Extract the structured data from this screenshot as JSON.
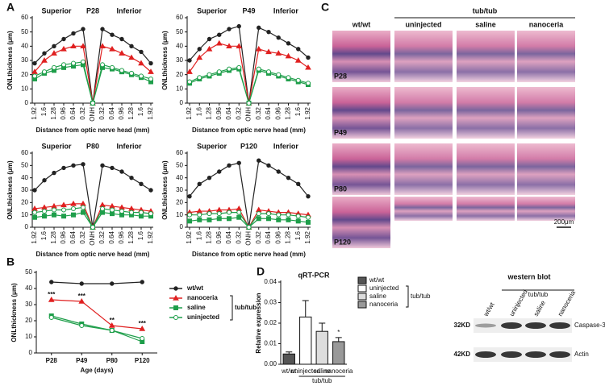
{
  "panel_labels": [
    "A",
    "B",
    "C",
    "D"
  ],
  "chart_data": [
    {
      "type": "line",
      "title": "P28",
      "left_label": "Superior",
      "right_label": "Inferior",
      "y_label": "ONLthickness (μm)",
      "x_label": "Distance from optic nerve head (mm)",
      "categories": [
        "1.92",
        "1.6",
        "1.28",
        "0.96",
        "0.64",
        "0.32",
        "ONH",
        "0.32",
        "0.64",
        "0.96",
        "1.28",
        "1.6",
        "1.92"
      ],
      "ylim": [
        0,
        60
      ],
      "yticks": [
        0,
        10,
        20,
        30,
        40,
        50,
        60
      ],
      "series": [
        {
          "name": "wt/wt",
          "color": "#222222",
          "marker": "circle",
          "values": [
            28,
            35,
            40,
            45,
            49,
            52,
            0,
            52,
            48,
            45,
            40,
            36,
            28
          ]
        },
        {
          "name": "nanoceria",
          "color": "#e02020",
          "marker": "triangle",
          "values": [
            22,
            30,
            35,
            38,
            40,
            40,
            0,
            40,
            38,
            35,
            32,
            28,
            22
          ]
        },
        {
          "name": "saline",
          "color": "#1e9e4a",
          "marker": "square",
          "values": [
            17,
            21,
            23,
            25,
            26,
            27,
            0,
            25,
            24,
            22,
            20,
            18,
            15
          ]
        },
        {
          "name": "uninjected",
          "color": "#1e9e4a",
          "marker": "open-circle",
          "values": [
            19,
            22,
            25,
            27,
            28,
            29,
            0,
            27,
            25,
            23,
            21,
            19,
            17
          ]
        }
      ]
    },
    {
      "type": "line",
      "title": "P49",
      "left_label": "Superior",
      "right_label": "Inferior",
      "y_label": "ONLthickness (μm)",
      "x_label": "Distance from optic nerve head (mm)",
      "categories": [
        "1.92",
        "1.6",
        "1.28",
        "0.96",
        "0.64",
        "0.32",
        "ONH",
        "0.32",
        "0.64",
        "0.96",
        "1.28",
        "1.6",
        "1.92"
      ],
      "ylim": [
        0,
        60
      ],
      "yticks": [
        0,
        10,
        20,
        30,
        40,
        50,
        60
      ],
      "series": [
        {
          "name": "wt/wt",
          "color": "#222222",
          "marker": "circle",
          "values": [
            30,
            38,
            45,
            48,
            52,
            54,
            0,
            53,
            50,
            46,
            42,
            38,
            32
          ]
        },
        {
          "name": "nanoceria",
          "color": "#e02020",
          "marker": "triangle",
          "values": [
            22,
            32,
            38,
            42,
            40,
            40,
            0,
            38,
            36,
            35,
            33,
            30,
            25
          ]
        },
        {
          "name": "saline",
          "color": "#1e9e4a",
          "marker": "square",
          "values": [
            14,
            17,
            19,
            21,
            23,
            24,
            0,
            23,
            21,
            19,
            17,
            15,
            13
          ]
        },
        {
          "name": "uninjected",
          "color": "#1e9e4a",
          "marker": "open-circle",
          "values": [
            15,
            18,
            20,
            22,
            24,
            25,
            0,
            24,
            22,
            20,
            18,
            16,
            14
          ]
        }
      ]
    },
    {
      "type": "line",
      "title": "P80",
      "left_label": "Superior",
      "right_label": "Inferior",
      "y_label": "ONLthickness (μm)",
      "x_label": "Distance from optic nerve head (mm)",
      "categories": [
        "1.92",
        "1.6",
        "1.28",
        "0.96",
        "0.64",
        "0.32",
        "ONH",
        "0.32",
        "0.64",
        "0.96",
        "1.28",
        "1.6",
        "1.92"
      ],
      "ylim": [
        0,
        60
      ],
      "yticks": [
        0,
        10,
        20,
        30,
        40,
        50,
        60
      ],
      "series": [
        {
          "name": "wt/wt",
          "color": "#222222",
          "marker": "circle",
          "values": [
            30,
            38,
            44,
            48,
            50,
            51,
            0,
            50,
            48,
            45,
            40,
            35,
            30
          ]
        },
        {
          "name": "nanoceria",
          "color": "#e02020",
          "marker": "triangle",
          "values": [
            15,
            16,
            17,
            18,
            19,
            19,
            0,
            18,
            17,
            16,
            15,
            14,
            13
          ]
        },
        {
          "name": "saline",
          "color": "#1e9e4a",
          "marker": "square",
          "values": [
            8,
            9,
            10,
            9,
            10,
            12,
            0,
            12,
            11,
            10,
            10,
            9,
            9
          ]
        },
        {
          "name": "uninjected",
          "color": "#1e9e4a",
          "marker": "open-circle",
          "values": [
            12,
            13,
            14,
            14,
            15,
            16,
            0,
            15,
            14,
            13,
            12,
            12,
            11
          ]
        }
      ]
    },
    {
      "type": "line",
      "title": "P120",
      "left_label": "Superior",
      "right_label": "Inferior",
      "y_label": "ONLthickness (μm)",
      "x_label": "Distance from optic nerve head (mm)",
      "categories": [
        "1.92",
        "1.6",
        "1.28",
        "0.96",
        "0.64",
        "0.32",
        "ONH",
        "0.32",
        "0.64",
        "0.96",
        "1.28",
        "1.6",
        "1.92"
      ],
      "ylim": [
        0,
        60
      ],
      "yticks": [
        0,
        10,
        20,
        30,
        40,
        50,
        60
      ],
      "series": [
        {
          "name": "wt/wt",
          "color": "#222222",
          "marker": "circle",
          "values": [
            25,
            35,
            40,
            45,
            50,
            52,
            0,
            54,
            50,
            45,
            40,
            35,
            25
          ]
        },
        {
          "name": "nanoceria",
          "color": "#e02020",
          "marker": "triangle",
          "values": [
            12,
            13,
            13,
            14,
            14,
            15,
            0,
            14,
            13,
            12,
            12,
            11,
            10
          ]
        },
        {
          "name": "saline",
          "color": "#1e9e4a",
          "marker": "square",
          "values": [
            5,
            6,
            6,
            7,
            7,
            8,
            0,
            7,
            7,
            6,
            6,
            5,
            4
          ]
        },
        {
          "name": "uninjected",
          "color": "#1e9e4a",
          "marker": "open-circle",
          "values": [
            10,
            10,
            11,
            11,
            12,
            12,
            0,
            11,
            11,
            10,
            10,
            9,
            8
          ]
        }
      ]
    },
    {
      "type": "line",
      "y_label": "ONLthickness (μm)",
      "x_label": "Age (days)",
      "categories": [
        "P28",
        "P49",
        "P80",
        "P120"
      ],
      "stars": [
        "***",
        "***",
        "**",
        "***"
      ],
      "ylim": [
        0,
        50
      ],
      "yticks": [
        0,
        10,
        20,
        30,
        40,
        50
      ],
      "legend_group_label": "tub/tub",
      "series": [
        {
          "name": "wt/wt",
          "color": "#222222",
          "marker": "circle",
          "values": [
            44,
            43,
            43,
            44
          ]
        },
        {
          "name": "nanoceria",
          "color": "#e02020",
          "marker": "triangle",
          "values": [
            33,
            32,
            17,
            15
          ]
        },
        {
          "name": "saline",
          "color": "#1e9e4a",
          "marker": "square",
          "values": [
            23,
            18,
            14,
            7
          ]
        },
        {
          "name": "uninjected",
          "color": "#1e9e4a",
          "marker": "open-circle",
          "values": [
            22,
            17,
            14,
            9
          ]
        }
      ]
    },
    {
      "type": "bar",
      "title": "qRT-PCR",
      "y_label": "Relative expression",
      "categories": [
        "wt/wt",
        "uninjected",
        "saline",
        "nanoceria"
      ],
      "group_label": "tub/tub",
      "legend_group_label": "tub/tub",
      "values": [
        0.005,
        0.023,
        0.016,
        0.011
      ],
      "errors": [
        0.001,
        0.008,
        0.004,
        0.002
      ],
      "colors": [
        "#555555",
        "#ffffff",
        "#dddddd",
        "#999999"
      ],
      "stars": [
        null,
        null,
        null,
        "*"
      ],
      "ylim": [
        0,
        0.04
      ],
      "yticks": [
        {
          "value": 0,
          "label": "0.00"
        },
        {
          "value": 0.01,
          "label": "0.01"
        },
        {
          "value": 0.02,
          "label": "0.02"
        },
        {
          "value": 0.03,
          "label": "0.03"
        },
        {
          "value": 0.04,
          "label": "0.04"
        }
      ]
    }
  ],
  "histology": {
    "columns": [
      "wt/wt",
      "uninjected",
      "saline",
      "nanoceria"
    ],
    "group_label": "tub/tub",
    "rows": [
      "P28",
      "P49",
      "P80",
      "P120"
    ],
    "scale_bar": "200μm"
  },
  "western_blot": {
    "title": "western blot",
    "lanes": [
      "wt/wt",
      "uninjected",
      "saline",
      "nanoceria"
    ],
    "group_label": "tub/tub",
    "rows": [
      {
        "size": "32KD",
        "protein": "Caspase-3"
      },
      {
        "size": "42KD",
        "protein": "Actin"
      }
    ]
  }
}
